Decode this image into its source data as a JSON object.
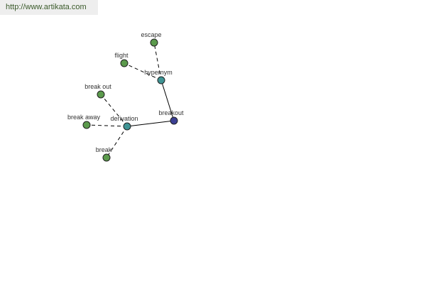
{
  "header": {
    "url": "http://www.artikata.com"
  },
  "colors": {
    "leaf": "#5b9a4c",
    "relation": "#3f9494",
    "root": "#3b3f93",
    "edge": "#000000"
  },
  "nodes": [
    {
      "id": "breakout",
      "label": "breakout",
      "kind": "root"
    },
    {
      "id": "hypernym",
      "label": "hypernym",
      "kind": "relation"
    },
    {
      "id": "derivation",
      "label": "derivation",
      "kind": "relation"
    },
    {
      "id": "escape",
      "label": "escape",
      "kind": "leaf"
    },
    {
      "id": "flight",
      "label": "flight",
      "kind": "leaf"
    },
    {
      "id": "break_out",
      "label": "break out",
      "kind": "leaf"
    },
    {
      "id": "break_away",
      "label": "break away",
      "kind": "leaf"
    },
    {
      "id": "break",
      "label": "break",
      "kind": "leaf"
    }
  ],
  "edges": [
    {
      "from": "breakout",
      "to": "hypernym",
      "style": "solid"
    },
    {
      "from": "breakout",
      "to": "derivation",
      "style": "solid"
    },
    {
      "from": "hypernym",
      "to": "escape",
      "style": "dashed"
    },
    {
      "from": "hypernym",
      "to": "flight",
      "style": "dashed"
    },
    {
      "from": "derivation",
      "to": "break_out",
      "style": "dashed"
    },
    {
      "from": "derivation",
      "to": "break_away",
      "style": "dashed"
    },
    {
      "from": "derivation",
      "to": "break",
      "style": "dashed"
    }
  ]
}
